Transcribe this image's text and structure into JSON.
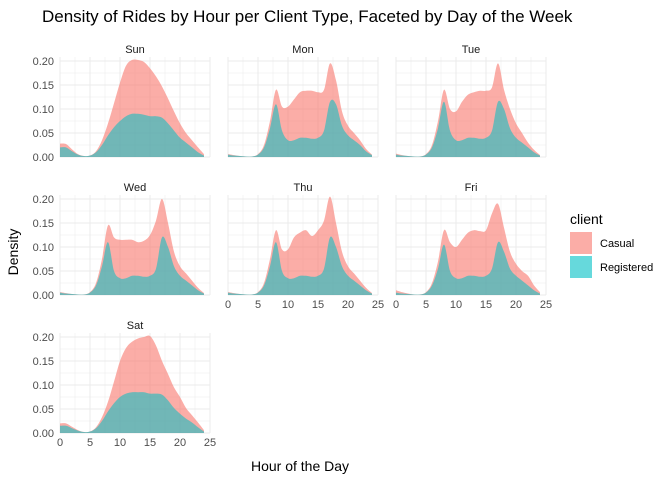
{
  "chart_data": {
    "type": "area",
    "title": "Density of Rides by Hour per Client Type, Faceted by Day of the Week",
    "xlabel": "Hour of the Day",
    "ylabel": "Density",
    "xlim": [
      0,
      24
    ],
    "ylim": [
      0,
      0.2
    ],
    "x_ticks": [
      0,
      5,
      10,
      15,
      20,
      25
    ],
    "y_ticks": [
      0.0,
      0.05,
      0.1,
      0.15,
      0.2
    ],
    "y_tick_labels": [
      "0.00",
      "0.05",
      "0.10",
      "0.15",
      "0.20"
    ],
    "legend": {
      "title": "client",
      "placement": "right",
      "entries": [
        {
          "name": "Casual",
          "color": "#F8766D"
        },
        {
          "name": "Registered",
          "color": "#00BFC4"
        }
      ]
    },
    "stacked": true,
    "grid": true,
    "x": [
      0,
      1,
      2,
      3,
      4,
      5,
      6,
      7,
      8,
      9,
      10,
      11,
      12,
      13,
      14,
      15,
      16,
      17,
      18,
      19,
      20,
      21,
      22,
      23,
      24
    ],
    "facets": [
      {
        "label": "Sun",
        "series": [
          {
            "name": "Registered",
            "values": [
              0.02,
              0.02,
              0.012,
              0.005,
              0.002,
              0.003,
              0.01,
              0.025,
              0.045,
              0.062,
              0.075,
              0.085,
              0.09,
              0.09,
              0.088,
              0.085,
              0.085,
              0.082,
              0.07,
              0.055,
              0.04,
              0.03,
              0.02,
              0.01,
              0.003
            ]
          },
          {
            "name": "Casual",
            "values": [
              0.008,
              0.007,
              0.004,
              0.001,
              0.0,
              0.0,
              0.002,
              0.01,
              0.025,
              0.05,
              0.08,
              0.105,
              0.112,
              0.112,
              0.11,
              0.1,
              0.083,
              0.065,
              0.052,
              0.04,
              0.03,
              0.02,
              0.015,
              0.01,
              0.003
            ]
          }
        ]
      },
      {
        "label": "Mon",
        "series": [
          {
            "name": "Registered",
            "values": [
              0.005,
              0.003,
              0.002,
              0.001,
              0.001,
              0.005,
              0.02,
              0.06,
              0.11,
              0.055,
              0.035,
              0.035,
              0.04,
              0.04,
              0.038,
              0.04,
              0.055,
              0.115,
              0.11,
              0.065,
              0.045,
              0.035,
              0.025,
              0.012,
              0.004
            ]
          },
          {
            "name": "Casual",
            "values": [
              0.001,
              0.001,
              0.0,
              0.0,
              0.0,
              0.001,
              0.005,
              0.015,
              0.03,
              0.05,
              0.07,
              0.085,
              0.095,
              0.098,
              0.1,
              0.095,
              0.085,
              0.08,
              0.05,
              0.03,
              0.02,
              0.015,
              0.01,
              0.005,
              0.001
            ]
          }
        ]
      },
      {
        "label": "Tue",
        "series": [
          {
            "name": "Registered",
            "values": [
              0.005,
              0.003,
              0.002,
              0.001,
              0.001,
              0.005,
              0.02,
              0.06,
              0.115,
              0.055,
              0.035,
              0.035,
              0.04,
              0.04,
              0.038,
              0.04,
              0.055,
              0.115,
              0.1,
              0.06,
              0.04,
              0.03,
              0.02,
              0.01,
              0.003
            ]
          },
          {
            "name": "Casual",
            "values": [
              0.002,
              0.001,
              0.0,
              0.0,
              0.0,
              0.001,
              0.005,
              0.015,
              0.025,
              0.045,
              0.06,
              0.08,
              0.09,
              0.095,
              0.1,
              0.098,
              0.09,
              0.08,
              0.04,
              0.04,
              0.03,
              0.02,
              0.01,
              0.005,
              0.001
            ]
          }
        ]
      },
      {
        "label": "Wed",
        "series": [
          {
            "name": "Registered",
            "values": [
              0.005,
              0.003,
              0.002,
              0.001,
              0.001,
              0.005,
              0.02,
              0.06,
              0.11,
              0.05,
              0.035,
              0.035,
              0.04,
              0.04,
              0.038,
              0.04,
              0.055,
              0.12,
              0.1,
              0.06,
              0.04,
              0.03,
              0.02,
              0.01,
              0.003
            ]
          },
          {
            "name": "Casual",
            "values": [
              0.001,
              0.001,
              0.0,
              0.0,
              0.0,
              0.001,
              0.005,
              0.015,
              0.035,
              0.07,
              0.08,
              0.08,
              0.075,
              0.07,
              0.075,
              0.085,
              0.1,
              0.08,
              0.05,
              0.03,
              0.02,
              0.015,
              0.01,
              0.005,
              0.001
            ]
          }
        ]
      },
      {
        "label": "Thu",
        "series": [
          {
            "name": "Registered",
            "values": [
              0.005,
              0.003,
              0.002,
              0.001,
              0.001,
              0.005,
              0.02,
              0.06,
              0.11,
              0.05,
              0.035,
              0.035,
              0.04,
              0.04,
              0.038,
              0.04,
              0.055,
              0.12,
              0.1,
              0.06,
              0.04,
              0.03,
              0.02,
              0.01,
              0.003
            ]
          },
          {
            "name": "Casual",
            "values": [
              0.001,
              0.001,
              0.0,
              0.0,
              0.0,
              0.001,
              0.005,
              0.015,
              0.025,
              0.045,
              0.06,
              0.085,
              0.09,
              0.095,
              0.085,
              0.095,
              0.1,
              0.085,
              0.05,
              0.03,
              0.02,
              0.015,
              0.01,
              0.005,
              0.001
            ]
          }
        ]
      },
      {
        "label": "Fri",
        "series": [
          {
            "name": "Registered",
            "values": [
              0.005,
              0.003,
              0.002,
              0.001,
              0.001,
              0.005,
              0.02,
              0.055,
              0.105,
              0.05,
              0.035,
              0.035,
              0.04,
              0.04,
              0.038,
              0.04,
              0.055,
              0.11,
              0.09,
              0.055,
              0.04,
              0.03,
              0.02,
              0.01,
              0.003
            ]
          },
          {
            "name": "Casual",
            "values": [
              0.005,
              0.003,
              0.001,
              0.0,
              0.0,
              0.001,
              0.005,
              0.015,
              0.03,
              0.06,
              0.065,
              0.08,
              0.09,
              0.095,
              0.095,
              0.095,
              0.115,
              0.08,
              0.05,
              0.035,
              0.025,
              0.02,
              0.02,
              0.01,
              0.003
            ]
          }
        ]
      },
      {
        "label": "Sat",
        "series": [
          {
            "name": "Registered",
            "values": [
              0.015,
              0.015,
              0.01,
              0.005,
              0.002,
              0.003,
              0.01,
              0.025,
              0.045,
              0.062,
              0.075,
              0.082,
              0.085,
              0.085,
              0.085,
              0.082,
              0.082,
              0.08,
              0.068,
              0.052,
              0.04,
              0.03,
              0.022,
              0.012,
              0.003
            ]
          },
          {
            "name": "Casual",
            "values": [
              0.005,
              0.005,
              0.003,
              0.001,
              0.0,
              0.0,
              0.002,
              0.008,
              0.02,
              0.045,
              0.075,
              0.095,
              0.105,
              0.112,
              0.115,
              0.12,
              0.1,
              0.07,
              0.055,
              0.043,
              0.035,
              0.022,
              0.015,
              0.01,
              0.003
            ]
          }
        ]
      }
    ]
  }
}
